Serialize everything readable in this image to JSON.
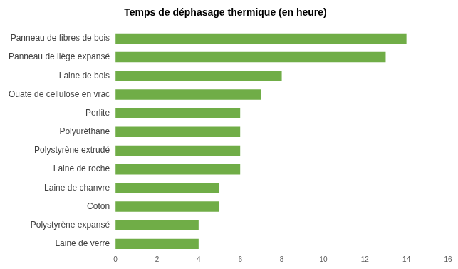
{
  "chart_data": {
    "type": "bar",
    "orientation": "horizontal",
    "title": "Temps de déphasage thermique (en heure)",
    "categories": [
      "Panneau de fibres de bois",
      "Panneau de liège expansé",
      "Laine de bois",
      "Ouate de cellulose en vrac",
      "Perlite",
      "Polyuréthane",
      "Polystyrène extrudé",
      "Laine de roche",
      "Laine de chanvre",
      "Coton",
      "Polystyrène expansé",
      "Laine de verre"
    ],
    "values": [
      14,
      13,
      8,
      7,
      6,
      6,
      6,
      6,
      5,
      5,
      4,
      4
    ],
    "color": "#70ad47",
    "xlim": [
      0,
      16
    ],
    "xticks": [
      0,
      2,
      4,
      6,
      8,
      10,
      12,
      14,
      16
    ],
    "grid": false
  }
}
